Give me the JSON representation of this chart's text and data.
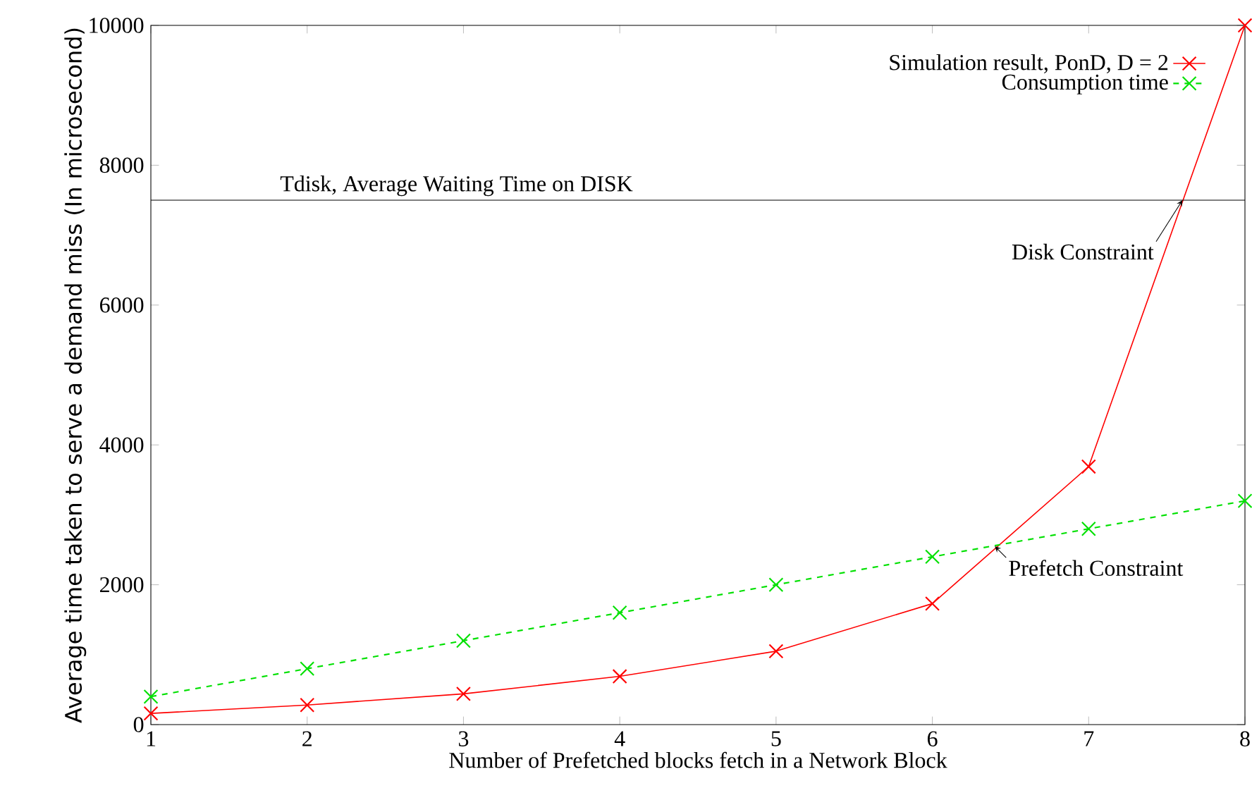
{
  "chart_data": {
    "type": "line",
    "xlabel": "Number of Prefetched blocks fetch in a Network Block",
    "ylabel": "Average time taken to serve a demand miss (In microsecond)",
    "x": [
      1,
      2,
      3,
      4,
      5,
      6,
      7,
      8
    ],
    "series": [
      {
        "name": "Simulation result, PonD, D = 2",
        "color": "#ff0000",
        "values": [
          160,
          280,
          440,
          690,
          1050,
          1730,
          3690,
          10000
        ],
        "marker": "cross",
        "line_style": "solid"
      },
      {
        "name": "Consumption time",
        "color": "#00e000",
        "values": [
          400,
          800,
          1200,
          1600,
          2000,
          2400,
          2800,
          3200
        ],
        "marker": "cross",
        "line_style": "dashed"
      }
    ],
    "xlim": [
      1,
      8
    ],
    "ylim": [
      0,
      10000
    ],
    "xticks": [
      1,
      2,
      3,
      4,
      5,
      6,
      7,
      8
    ],
    "yticks": [
      0,
      2000,
      4000,
      6000,
      8000,
      10000
    ],
    "ref_lines": [
      {
        "axis": "y",
        "value": 7500,
        "label": "Tdisk, Average Waiting Time on DISK",
        "color": "#000000"
      }
    ],
    "annotations": [
      {
        "text": "Disk Constraint",
        "x": 7.6,
        "y": 7500
      },
      {
        "text": "Prefetch Constraint",
        "x": 6.4,
        "y": 2550
      }
    ],
    "grid": false,
    "legend": "top right"
  }
}
